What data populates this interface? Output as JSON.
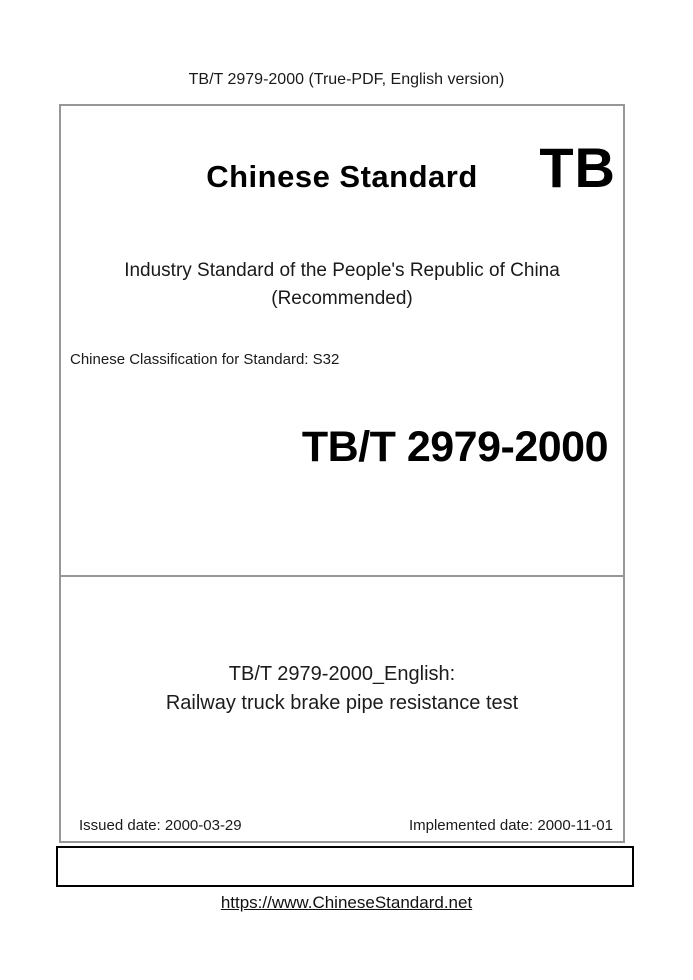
{
  "page": {
    "header": "TB/T 2979-2000 (True-PDF, English version)",
    "footer_link": "https://www.ChineseStandard.net"
  },
  "cover": {
    "brand": "Chinese Standard",
    "logo": "TB",
    "standard_type_line1": "Industry Standard of the People's Republic of China",
    "standard_type_line2": "(Recommended)",
    "classification": "Chinese Classification for Standard: S32",
    "standard_number": "TB/T 2979-2000",
    "title_line1": "TB/T 2979-2000_English:",
    "title_line2": "Railway truck brake pipe resistance test",
    "issued_date": "Issued date: 2000-03-29",
    "implemented_date": "Implemented date: 2000-11-01"
  },
  "colors": {
    "main_border": "#979797",
    "bottom_border": "#000000",
    "text": "#1a1a1a"
  }
}
